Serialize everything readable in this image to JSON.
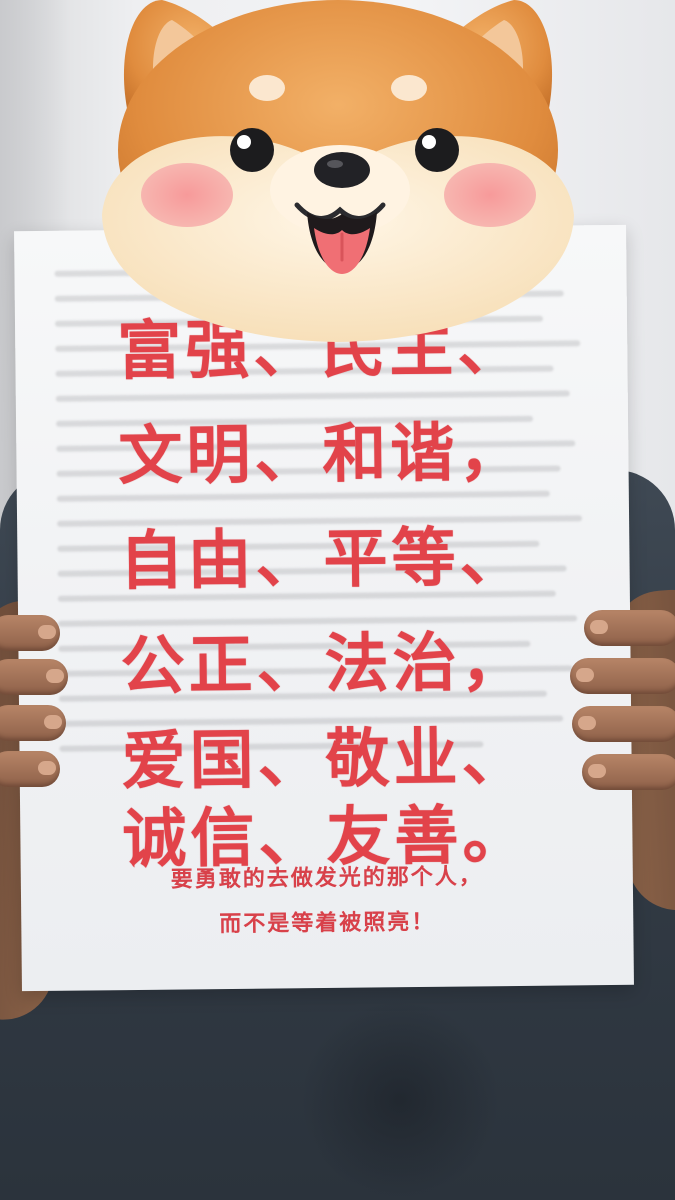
{
  "poster": {
    "lines": [
      "富强、民主、",
      "文明、和谐，",
      "自由、平等、",
      "公正、法治，",
      "爱国、敬业、",
      "诚信、友善。"
    ],
    "sub_lines": [
      "要勇敢的去做发光的那个人，",
      "而不是等着被照亮！"
    ]
  },
  "sticker": {
    "icon": "shiba-dog-face-icon",
    "colors": {
      "fur": "#e59a4c",
      "cream": "#fbe9cc",
      "cheek": "#f5a3a1",
      "tongue": "#f06f74"
    }
  },
  "colors": {
    "slogan_red": "#e2434a",
    "shirt": "#353e48",
    "paper": "#f3f4f6"
  }
}
